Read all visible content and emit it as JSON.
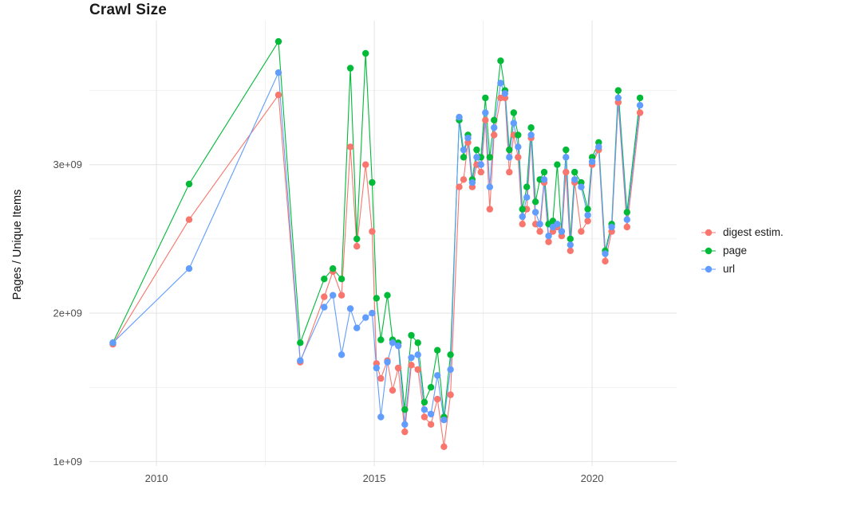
{
  "chart_data": {
    "type": "line",
    "title": "Crawl Size",
    "xlabel": "",
    "ylabel": "Pages / Unique Items",
    "grid": true,
    "legend_position": "right",
    "xlim": [
      2008.46,
      2021.94
    ],
    "ylim": [
      0.97,
      3.97
    ],
    "y_unit_multiplier": 1000000000,
    "x_ticks": [
      2010,
      2015,
      2020
    ],
    "x_tick_labels": [
      "2010",
      "2015",
      "2020"
    ],
    "x_minor_ticks": [
      2012.5,
      2017.5
    ],
    "y_ticks": [
      1,
      2,
      3
    ],
    "y_tick_labels": [
      "1e+09",
      "2e+09",
      "3e+09"
    ],
    "y_minor_ticks": [
      1.5,
      2.5,
      3.5
    ],
    "x": [
      2009.0,
      2010.75,
      2012.8,
      2013.3,
      2013.85,
      2014.05,
      2014.25,
      2014.45,
      2014.6,
      2014.8,
      2014.95,
      2015.05,
      2015.15,
      2015.3,
      2015.42,
      2015.55,
      2015.7,
      2015.85,
      2016.0,
      2016.15,
      2016.3,
      2016.45,
      2016.6,
      2016.75,
      2016.95,
      2017.05,
      2017.15,
      2017.25,
      2017.35,
      2017.45,
      2017.55,
      2017.65,
      2017.75,
      2017.9,
      2018.0,
      2018.1,
      2018.2,
      2018.3,
      2018.4,
      2018.5,
      2018.6,
      2018.7,
      2018.8,
      2018.9,
      2019.0,
      2019.1,
      2019.2,
      2019.3,
      2019.4,
      2019.5,
      2019.6,
      2019.75,
      2019.9,
      2020.0,
      2020.15,
      2020.3,
      2020.45,
      2020.6,
      2020.8,
      2021.1
    ],
    "series": [
      {
        "key": "digest",
        "name": "digest estim.",
        "color": "#F8766D",
        "values": [
          1.79,
          2.63,
          3.47,
          1.67,
          2.11,
          2.28,
          2.12,
          3.12,
          2.45,
          3.0,
          2.55,
          1.66,
          1.56,
          1.68,
          1.48,
          1.63,
          1.2,
          1.65,
          1.62,
          1.3,
          1.25,
          1.42,
          1.1,
          1.45,
          2.85,
          2.9,
          3.15,
          2.85,
          3.0,
          2.95,
          3.3,
          2.7,
          3.2,
          3.45,
          3.45,
          2.95,
          3.2,
          3.05,
          2.6,
          2.7,
          3.18,
          2.6,
          2.55,
          2.88,
          2.48,
          2.55,
          2.58,
          2.52,
          2.95,
          2.42,
          2.88,
          2.55,
          2.62,
          3.0,
          3.1,
          2.35,
          2.55,
          3.42,
          2.58,
          3.35
        ]
      },
      {
        "key": "page",
        "name": "page",
        "color": "#00BA38",
        "values": [
          1.8,
          2.87,
          3.83,
          1.8,
          2.23,
          2.3,
          2.23,
          3.65,
          2.5,
          3.75,
          2.88,
          2.1,
          1.82,
          2.12,
          1.82,
          1.8,
          1.35,
          1.85,
          1.8,
          1.4,
          1.5,
          1.75,
          1.3,
          1.72,
          3.3,
          3.05,
          3.2,
          2.9,
          3.1,
          3.05,
          3.45,
          3.05,
          3.3,
          3.7,
          3.5,
          3.1,
          3.35,
          3.2,
          2.7,
          2.85,
          3.25,
          2.75,
          2.9,
          2.95,
          2.6,
          2.62,
          3.0,
          2.55,
          3.1,
          2.5,
          2.95,
          2.88,
          2.7,
          3.05,
          3.15,
          2.42,
          2.6,
          3.5,
          2.68,
          3.45
        ]
      },
      {
        "key": "url",
        "name": "url",
        "color": "#619CFF",
        "values": [
          1.8,
          2.3,
          3.62,
          1.68,
          2.04,
          2.12,
          1.72,
          2.03,
          1.9,
          1.97,
          2.0,
          1.63,
          1.3,
          1.67,
          1.8,
          1.78,
          1.25,
          1.7,
          1.72,
          1.35,
          1.32,
          1.58,
          1.28,
          1.62,
          3.32,
          3.1,
          3.18,
          2.88,
          3.05,
          3.0,
          3.35,
          2.85,
          3.25,
          3.55,
          3.48,
          3.05,
          3.28,
          3.12,
          2.65,
          2.78,
          3.2,
          2.68,
          2.6,
          2.9,
          2.52,
          2.58,
          2.6,
          2.55,
          3.05,
          2.46,
          2.9,
          2.85,
          2.66,
          3.02,
          3.12,
          2.4,
          2.58,
          3.45,
          2.63,
          3.4
        ]
      }
    ],
    "style": {
      "grid_major_color": "#e3e3e3",
      "grid_minor_color": "#f1f1f1",
      "point_radius": 4.2,
      "line_width": 1.1
    }
  }
}
